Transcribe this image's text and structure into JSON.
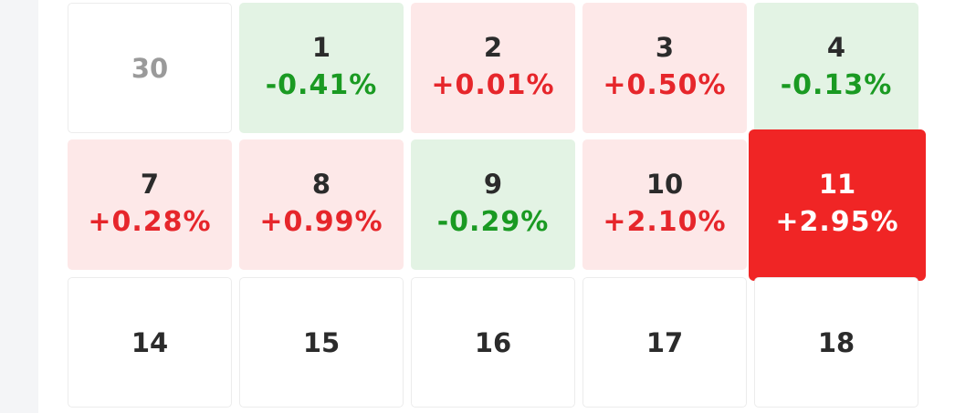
{
  "calendar": {
    "rows": [
      [
        {
          "day": "30",
          "muted": true
        },
        {
          "day": "1",
          "change": "-0.41%"
        },
        {
          "day": "2",
          "change": "+0.01%"
        },
        {
          "day": "3",
          "change": "+0.50%"
        },
        {
          "day": "4",
          "change": "-0.13%"
        }
      ],
      [
        {
          "day": "7",
          "change": "+0.28%"
        },
        {
          "day": "8",
          "change": "+0.99%"
        },
        {
          "day": "9",
          "change": "-0.29%"
        },
        {
          "day": "10",
          "change": "+2.10%"
        },
        {
          "day": "11",
          "change": "+2.95%",
          "selected": true
        }
      ],
      [
        {
          "day": "14"
        },
        {
          "day": "15"
        },
        {
          "day": "16"
        },
        {
          "day": "17"
        },
        {
          "day": "18"
        }
      ]
    ]
  }
}
